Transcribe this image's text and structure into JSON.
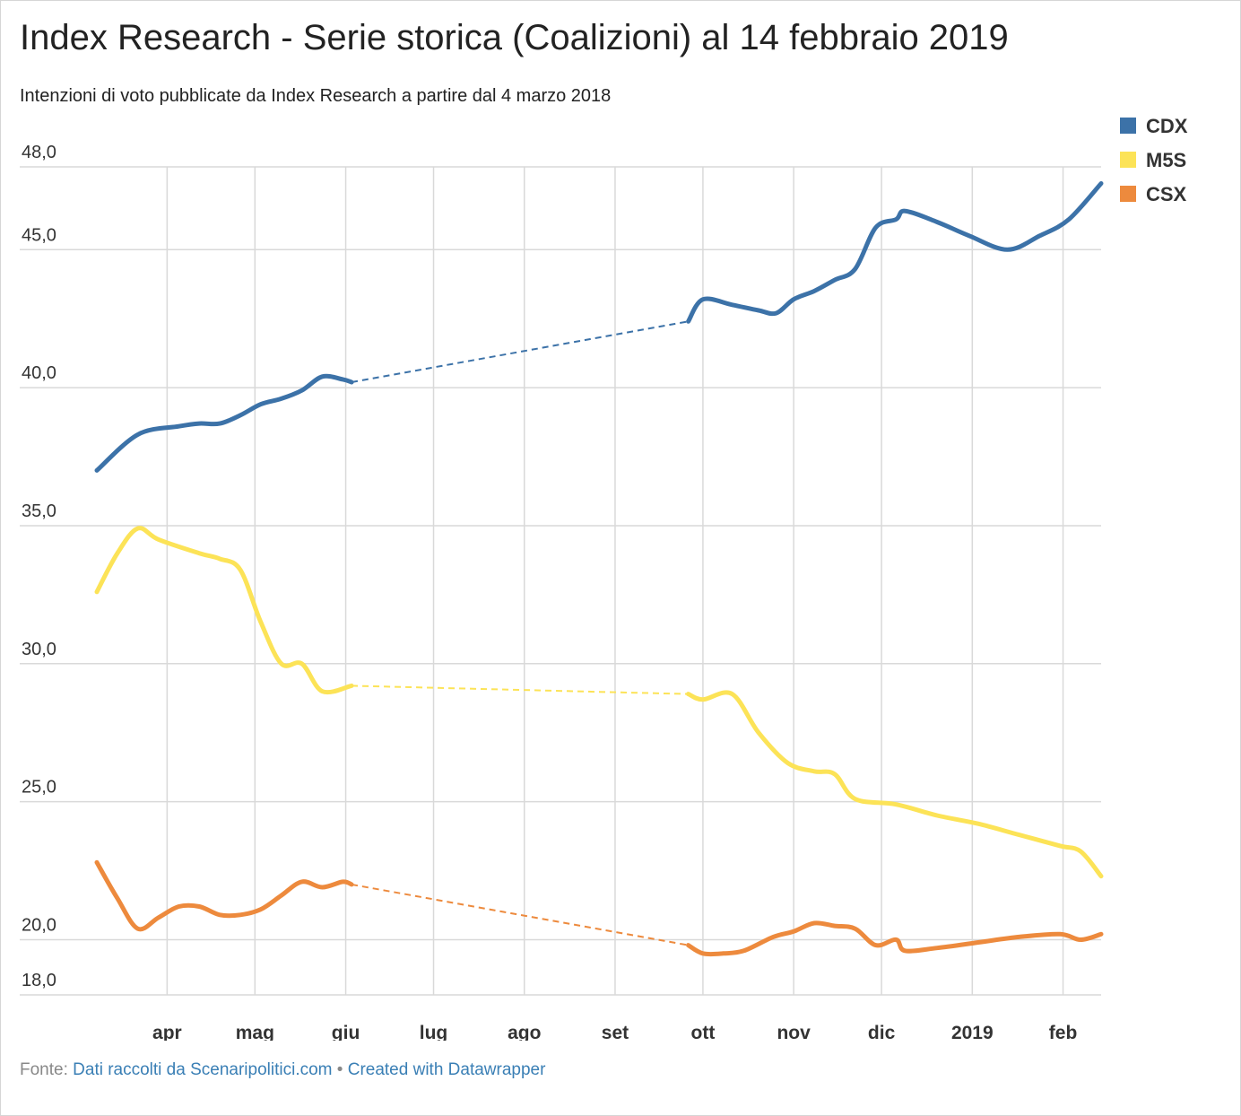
{
  "chart_data": {
    "type": "line",
    "title": "Index Research - Serie storica (Coalizioni) al 14 febbraio 2019",
    "subtitle": "Intenzioni di voto pubblicate da Index Research a partire dal 4 marzo 2018",
    "y_ticks": [
      "48,0",
      "45,0",
      "40,0",
      "35,0",
      "30,0",
      "25,0",
      "20,0",
      "18,0"
    ],
    "y_tick_values": [
      48,
      45,
      40,
      35,
      30,
      25,
      20,
      18
    ],
    "ylim": [
      18,
      48
    ],
    "x_ticks": [
      {
        "label": "apr",
        "date": "2018-04-01"
      },
      {
        "label": "mag",
        "date": "2018-05-01"
      },
      {
        "label": "giu",
        "date": "2018-06-01"
      },
      {
        "label": "lug",
        "date": "2018-07-01"
      },
      {
        "label": "ago",
        "date": "2018-08-01"
      },
      {
        "label": "set",
        "date": "2018-09-01"
      },
      {
        "label": "ott",
        "date": "2018-10-01"
      },
      {
        "label": "nov",
        "date": "2018-11-01"
      },
      {
        "label": "dic",
        "date": "2018-12-01"
      },
      {
        "label": "2019",
        "date": "2019-01-01"
      },
      {
        "label": "feb",
        "date": "2019-02-01"
      }
    ],
    "xlim": [
      "2018-03-08",
      "2019-02-14"
    ],
    "gap": {
      "from": "2018-06-03",
      "to": "2018-09-26",
      "style": "dashed"
    },
    "legend_position": "top-right",
    "grid": true,
    "series": [
      {
        "name": "CDX",
        "color": "#3c72a8",
        "points": [
          [
            "2018-03-08",
            37.0
          ],
          [
            "2018-03-22",
            38.3
          ],
          [
            "2018-04-05",
            38.6
          ],
          [
            "2018-04-12",
            38.7
          ],
          [
            "2018-04-19",
            38.7
          ],
          [
            "2018-04-26",
            39.0
          ],
          [
            "2018-05-03",
            39.4
          ],
          [
            "2018-05-10",
            39.6
          ],
          [
            "2018-05-17",
            39.9
          ],
          [
            "2018-05-24",
            40.4
          ],
          [
            "2018-05-31",
            40.3
          ],
          [
            "2018-06-03",
            40.2
          ],
          [
            "2018-09-26",
            42.4
          ],
          [
            "2018-10-01",
            43.2
          ],
          [
            "2018-10-11",
            43.0
          ],
          [
            "2018-10-20",
            42.8
          ],
          [
            "2018-10-26",
            42.7
          ],
          [
            "2018-11-01",
            43.2
          ],
          [
            "2018-11-08",
            43.5
          ],
          [
            "2018-11-15",
            43.9
          ],
          [
            "2018-11-22",
            44.3
          ],
          [
            "2018-11-29",
            45.8
          ],
          [
            "2018-12-06",
            46.1
          ],
          [
            "2018-12-09",
            46.4
          ],
          [
            "2018-12-20",
            46.0
          ],
          [
            "2018-12-31",
            45.5
          ],
          [
            "2019-01-13",
            45.0
          ],
          [
            "2019-01-24",
            45.5
          ],
          [
            "2019-02-03",
            46.1
          ],
          [
            "2019-02-14",
            47.4
          ]
        ]
      },
      {
        "name": "M5S",
        "color": "#fce357",
        "points": [
          [
            "2018-03-08",
            32.6
          ],
          [
            "2018-03-15",
            34.0
          ],
          [
            "2018-03-22",
            34.9
          ],
          [
            "2018-03-29",
            34.5
          ],
          [
            "2018-04-12",
            34.0
          ],
          [
            "2018-04-19",
            33.8
          ],
          [
            "2018-04-26",
            33.4
          ],
          [
            "2018-05-03",
            31.5
          ],
          [
            "2018-05-10",
            30.0
          ],
          [
            "2018-05-17",
            30.0
          ],
          [
            "2018-05-24",
            29.0
          ],
          [
            "2018-06-03",
            29.2
          ],
          [
            "2018-09-26",
            28.9
          ],
          [
            "2018-10-01",
            28.7
          ],
          [
            "2018-10-11",
            28.9
          ],
          [
            "2018-10-20",
            27.5
          ],
          [
            "2018-10-30",
            26.4
          ],
          [
            "2018-11-08",
            26.1
          ],
          [
            "2018-11-15",
            26.0
          ],
          [
            "2018-11-22",
            25.1
          ],
          [
            "2018-12-06",
            24.9
          ],
          [
            "2018-12-20",
            24.5
          ],
          [
            "2019-01-03",
            24.2
          ],
          [
            "2019-01-17",
            23.8
          ],
          [
            "2019-01-31",
            23.4
          ],
          [
            "2019-02-07",
            23.2
          ],
          [
            "2019-02-14",
            22.3
          ]
        ]
      },
      {
        "name": "CSX",
        "color": "#ed8a3d",
        "points": [
          [
            "2018-03-08",
            22.8
          ],
          [
            "2018-03-15",
            21.5
          ],
          [
            "2018-03-22",
            20.4
          ],
          [
            "2018-03-29",
            20.8
          ],
          [
            "2018-04-05",
            21.2
          ],
          [
            "2018-04-12",
            21.2
          ],
          [
            "2018-04-19",
            20.9
          ],
          [
            "2018-04-26",
            20.9
          ],
          [
            "2018-05-03",
            21.1
          ],
          [
            "2018-05-10",
            21.6
          ],
          [
            "2018-05-17",
            22.1
          ],
          [
            "2018-05-24",
            21.9
          ],
          [
            "2018-05-31",
            22.1
          ],
          [
            "2018-06-03",
            22.0
          ],
          [
            "2018-09-26",
            19.8
          ],
          [
            "2018-10-01",
            19.5
          ],
          [
            "2018-10-08",
            19.5
          ],
          [
            "2018-10-15",
            19.6
          ],
          [
            "2018-10-25",
            20.1
          ],
          [
            "2018-11-01",
            20.3
          ],
          [
            "2018-11-08",
            20.6
          ],
          [
            "2018-11-15",
            20.5
          ],
          [
            "2018-11-22",
            20.4
          ],
          [
            "2018-11-29",
            19.8
          ],
          [
            "2018-12-06",
            20.0
          ],
          [
            "2018-12-09",
            19.6
          ],
          [
            "2018-12-20",
            19.7
          ],
          [
            "2019-01-03",
            19.9
          ],
          [
            "2019-01-17",
            20.1
          ],
          [
            "2019-01-31",
            20.2
          ],
          [
            "2019-02-07",
            20.0
          ],
          [
            "2019-02-14",
            20.2
          ]
        ]
      }
    ]
  },
  "footer": {
    "prefix": "Fonte: ",
    "source_link": "Dati raccolti da Scenaripolitici.com",
    "separator": " • ",
    "credit_link": "Created with Datawrapper"
  }
}
